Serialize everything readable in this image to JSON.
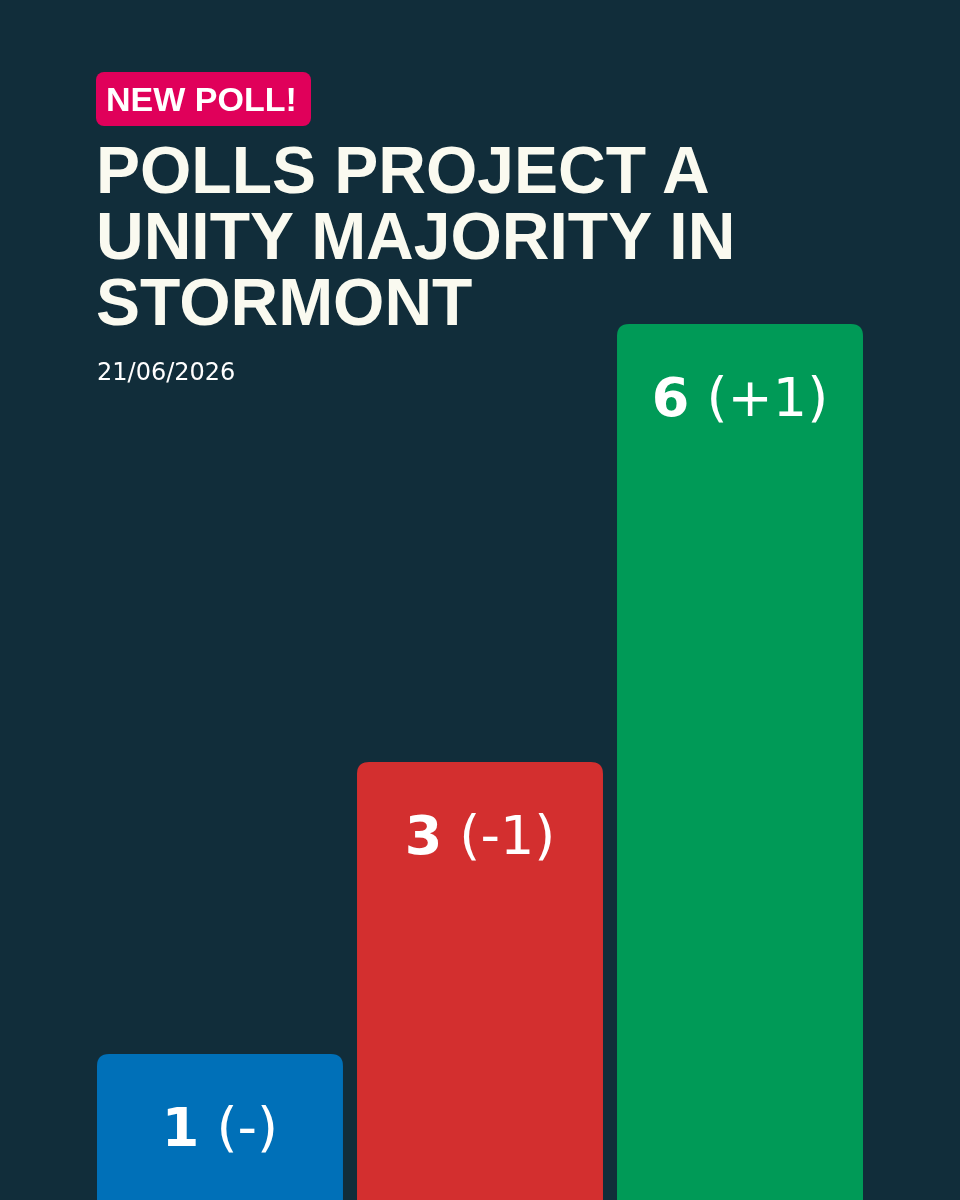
{
  "chart_data": {
    "type": "bar",
    "title": "POLLS PROJECT A UNITY MAJORITY IN STORMONT",
    "annotations": [
      "NEW POLL!",
      "21/06/2026"
    ],
    "categories": [
      null,
      null,
      null
    ],
    "values": [
      1,
      3,
      6
    ],
    "colors": [
      "#0070b8",
      "#d32f2f",
      "#009a57"
    ],
    "value_labels": [
      "1 (-)",
      "3 (-1)",
      "6 (+1)"
    ],
    "ylim": [
      0,
      6
    ]
  }
}
